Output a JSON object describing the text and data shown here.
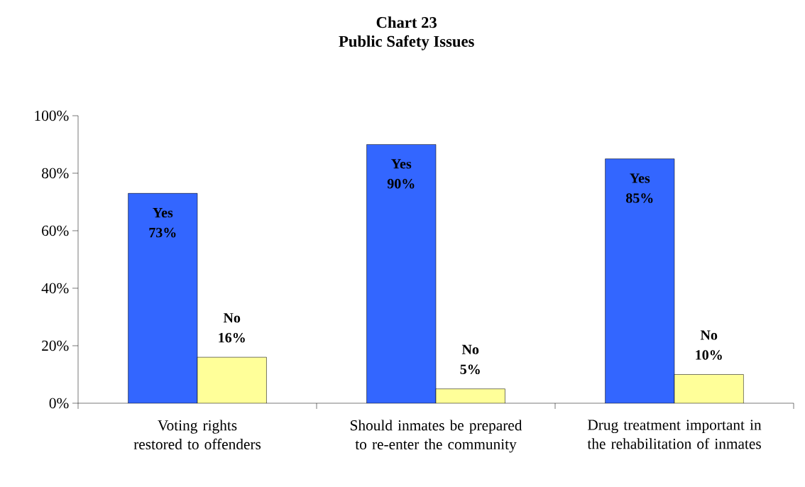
{
  "chart_data": {
    "type": "bar",
    "title": "Chart 23",
    "subtitle": "Public Safety Issues",
    "categories": [
      "Voting rights restored to offenders",
      "Should inmates be prepared to re-enter the community",
      "Drug treatment important in the rehabilitation of inmates"
    ],
    "series": [
      {
        "name": "Yes",
        "color": "#3366ff",
        "values": [
          73,
          90,
          85
        ],
        "value_labels": [
          "73%",
          "90%",
          "85%"
        ]
      },
      {
        "name": "No",
        "color": "#ffff99",
        "values": [
          16,
          5,
          10
        ],
        "value_labels": [
          "16%",
          "5%",
          "10%"
        ]
      }
    ],
    "ylim": [
      0,
      100
    ],
    "yticks": [
      {
        "value": 0,
        "label": "0%"
      },
      {
        "value": 20,
        "label": "20%"
      },
      {
        "value": 40,
        "label": "40%"
      },
      {
        "value": 60,
        "label": "60%"
      },
      {
        "value": 80,
        "label": "80%"
      },
      {
        "value": 100,
        "label": "100%"
      }
    ],
    "grid": false
  }
}
